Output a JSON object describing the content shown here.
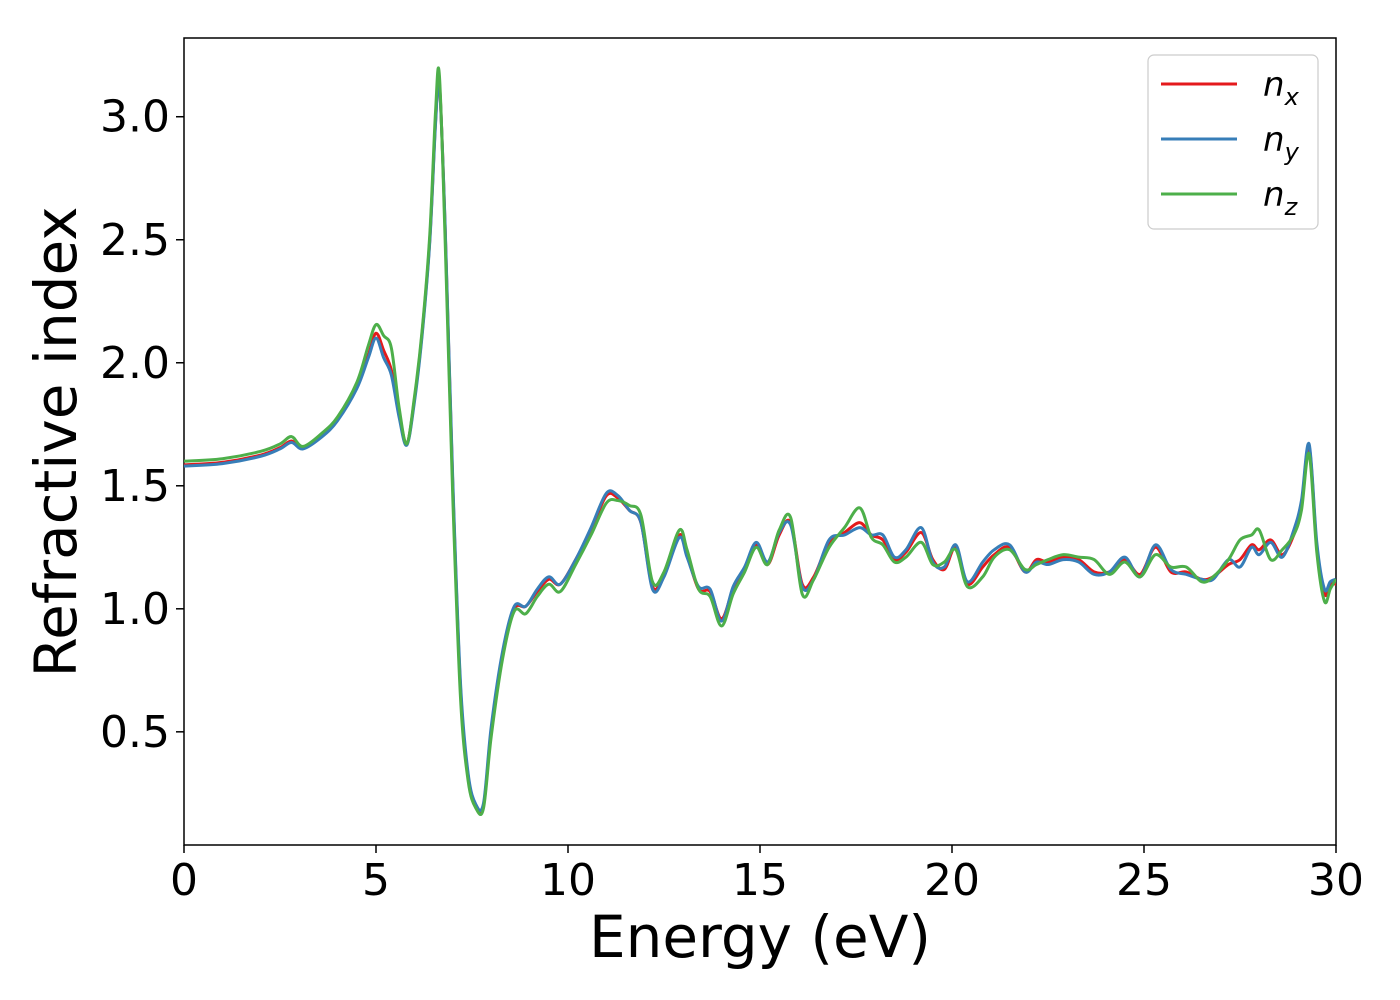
{
  "chart_data": {
    "type": "line",
    "title": "",
    "xlabel": "Energy (eV)",
    "ylabel": "Refractive index",
    "xlim": [
      0,
      30
    ],
    "ylim": [
      0.04,
      3.32
    ],
    "xticks": [
      0,
      5,
      10,
      15,
      20,
      25,
      30
    ],
    "yticks": [
      0.5,
      1.0,
      1.5,
      2.0,
      2.5,
      3.0
    ],
    "xtick_labels": [
      "0",
      "5",
      "10",
      "15",
      "20",
      "25",
      "30"
    ],
    "ytick_labels": [
      "0.5",
      "1.0",
      "1.5",
      "2.0",
      "2.5",
      "3.0"
    ],
    "grid": false,
    "legend_position": "top-right",
    "series": [
      {
        "name": "n_x",
        "label_base": "n",
        "label_sub": "x",
        "color": "#e41a1c",
        "x": [
          0,
          1,
          2,
          2.5,
          2.8,
          3.1,
          3.6,
          4.0,
          4.5,
          4.8,
          5.0,
          5.2,
          5.4,
          5.6,
          5.8,
          6.0,
          6.2,
          6.4,
          6.55,
          6.65,
          6.8,
          7.0,
          7.2,
          7.4,
          7.6,
          7.8,
          8.0,
          8.3,
          8.6,
          8.9,
          9.2,
          9.5,
          9.8,
          10.2,
          10.6,
          11.0,
          11.3,
          11.6,
          11.9,
          12.2,
          12.5,
          12.9,
          13.1,
          13.4,
          13.7,
          14.0,
          14.3,
          14.6,
          14.9,
          15.2,
          15.5,
          15.8,
          16.1,
          16.4,
          16.8,
          17.2,
          17.6,
          17.9,
          18.2,
          18.5,
          18.8,
          19.2,
          19.5,
          19.8,
          20.1,
          20.4,
          20.8,
          21.1,
          21.5,
          21.9,
          22.2,
          22.5,
          22.9,
          23.3,
          23.7,
          24.1,
          24.5,
          24.9,
          25.3,
          25.7,
          26.1,
          26.5,
          26.8,
          27.2,
          27.5,
          27.8,
          28.0,
          28.3,
          28.6,
          28.9,
          29.1,
          29.3,
          29.5,
          29.7,
          29.85,
          30.0
        ],
        "y": [
          1.585,
          1.595,
          1.625,
          1.655,
          1.682,
          1.655,
          1.705,
          1.77,
          1.9,
          2.03,
          2.12,
          2.05,
          1.97,
          1.8,
          1.67,
          1.85,
          2.12,
          2.5,
          2.98,
          3.14,
          2.55,
          1.5,
          0.68,
          0.32,
          0.2,
          0.2,
          0.5,
          0.82,
          1.0,
          1.01,
          1.07,
          1.12,
          1.1,
          1.2,
          1.32,
          1.46,
          1.45,
          1.4,
          1.35,
          1.09,
          1.14,
          1.3,
          1.22,
          1.08,
          1.07,
          0.96,
          1.08,
          1.16,
          1.26,
          1.18,
          1.3,
          1.35,
          1.1,
          1.13,
          1.27,
          1.31,
          1.35,
          1.3,
          1.28,
          1.2,
          1.23,
          1.31,
          1.2,
          1.16,
          1.25,
          1.1,
          1.17,
          1.22,
          1.25,
          1.15,
          1.2,
          1.19,
          1.21,
          1.2,
          1.15,
          1.15,
          1.2,
          1.14,
          1.25,
          1.15,
          1.15,
          1.12,
          1.13,
          1.18,
          1.2,
          1.26,
          1.24,
          1.28,
          1.22,
          1.3,
          1.42,
          1.66,
          1.25,
          1.06,
          1.1,
          1.1
        ]
      },
      {
        "name": "n_y",
        "label_base": "n",
        "label_sub": "y",
        "color": "#377eb8",
        "x": [
          0,
          1,
          2,
          2.5,
          2.8,
          3.1,
          3.6,
          4.0,
          4.5,
          4.8,
          5.0,
          5.2,
          5.4,
          5.6,
          5.8,
          6.0,
          6.2,
          6.4,
          6.55,
          6.65,
          6.8,
          7.0,
          7.2,
          7.4,
          7.6,
          7.8,
          8.0,
          8.3,
          8.6,
          8.9,
          9.2,
          9.5,
          9.8,
          10.2,
          10.6,
          11.0,
          11.3,
          11.6,
          11.9,
          12.2,
          12.5,
          12.9,
          13.1,
          13.4,
          13.7,
          14.0,
          14.3,
          14.6,
          14.9,
          15.2,
          15.5,
          15.8,
          16.1,
          16.4,
          16.8,
          17.2,
          17.6,
          17.9,
          18.2,
          18.5,
          18.8,
          19.2,
          19.5,
          19.8,
          20.1,
          20.4,
          20.8,
          21.1,
          21.5,
          21.9,
          22.2,
          22.5,
          22.9,
          23.3,
          23.7,
          24.1,
          24.5,
          24.9,
          25.3,
          25.7,
          26.1,
          26.5,
          26.8,
          27.2,
          27.5,
          27.8,
          28.0,
          28.3,
          28.6,
          28.9,
          29.1,
          29.3,
          29.5,
          29.7,
          29.85,
          30.0
        ],
        "y": [
          1.58,
          1.59,
          1.62,
          1.65,
          1.676,
          1.65,
          1.7,
          1.765,
          1.895,
          2.02,
          2.1,
          2.02,
          1.95,
          1.78,
          1.665,
          1.84,
          2.11,
          2.49,
          2.97,
          3.13,
          2.56,
          1.52,
          0.7,
          0.33,
          0.205,
          0.21,
          0.52,
          0.83,
          1.01,
          1.01,
          1.08,
          1.13,
          1.1,
          1.2,
          1.33,
          1.47,
          1.46,
          1.4,
          1.35,
          1.08,
          1.13,
          1.29,
          1.21,
          1.09,
          1.08,
          0.95,
          1.09,
          1.17,
          1.27,
          1.19,
          1.31,
          1.34,
          1.09,
          1.12,
          1.28,
          1.3,
          1.33,
          1.3,
          1.3,
          1.21,
          1.24,
          1.33,
          1.19,
          1.17,
          1.26,
          1.11,
          1.19,
          1.24,
          1.26,
          1.15,
          1.19,
          1.18,
          1.2,
          1.19,
          1.14,
          1.15,
          1.21,
          1.13,
          1.26,
          1.16,
          1.14,
          1.12,
          1.12,
          1.2,
          1.17,
          1.25,
          1.22,
          1.27,
          1.21,
          1.32,
          1.44,
          1.67,
          1.27,
          1.08,
          1.11,
          1.12
        ]
      },
      {
        "name": "n_z",
        "label_base": "n",
        "label_sub": "z",
        "color": "#4daf4a",
        "x": [
          0,
          1,
          2,
          2.5,
          2.8,
          3.1,
          3.6,
          4.0,
          4.5,
          4.8,
          5.0,
          5.2,
          5.4,
          5.6,
          5.8,
          6.0,
          6.2,
          6.4,
          6.55,
          6.65,
          6.8,
          7.0,
          7.2,
          7.4,
          7.6,
          7.8,
          8.0,
          8.3,
          8.6,
          8.9,
          9.2,
          9.5,
          9.8,
          10.2,
          10.6,
          11.0,
          11.3,
          11.6,
          11.9,
          12.2,
          12.5,
          12.9,
          13.1,
          13.4,
          13.7,
          14.0,
          14.3,
          14.6,
          14.9,
          15.2,
          15.5,
          15.8,
          16.1,
          16.4,
          16.8,
          17.2,
          17.6,
          17.9,
          18.2,
          18.5,
          18.8,
          19.2,
          19.5,
          19.8,
          20.1,
          20.4,
          20.8,
          21.1,
          21.5,
          21.9,
          22.2,
          22.5,
          22.9,
          23.3,
          23.7,
          24.1,
          24.5,
          24.9,
          25.3,
          25.7,
          26.1,
          26.5,
          26.8,
          27.2,
          27.5,
          27.8,
          28.0,
          28.3,
          28.6,
          28.9,
          29.1,
          29.3,
          29.5,
          29.7,
          29.85,
          30.0
        ],
        "y": [
          1.6,
          1.61,
          1.64,
          1.67,
          1.7,
          1.66,
          1.715,
          1.78,
          1.92,
          2.07,
          2.155,
          2.11,
          2.06,
          1.82,
          1.67,
          1.86,
          2.13,
          2.52,
          3.02,
          3.17,
          2.5,
          1.45,
          0.64,
          0.3,
          0.19,
          0.19,
          0.48,
          0.8,
          0.99,
          0.98,
          1.05,
          1.1,
          1.07,
          1.18,
          1.3,
          1.43,
          1.44,
          1.42,
          1.38,
          1.11,
          1.15,
          1.32,
          1.24,
          1.08,
          1.05,
          0.93,
          1.06,
          1.15,
          1.25,
          1.18,
          1.32,
          1.37,
          1.06,
          1.12,
          1.25,
          1.33,
          1.41,
          1.29,
          1.26,
          1.19,
          1.21,
          1.27,
          1.18,
          1.19,
          1.24,
          1.09,
          1.13,
          1.21,
          1.24,
          1.16,
          1.18,
          1.2,
          1.22,
          1.21,
          1.2,
          1.14,
          1.19,
          1.13,
          1.22,
          1.17,
          1.17,
          1.11,
          1.13,
          1.2,
          1.28,
          1.3,
          1.32,
          1.2,
          1.24,
          1.3,
          1.4,
          1.63,
          1.23,
          1.03,
          1.08,
          1.12
        ]
      }
    ]
  }
}
